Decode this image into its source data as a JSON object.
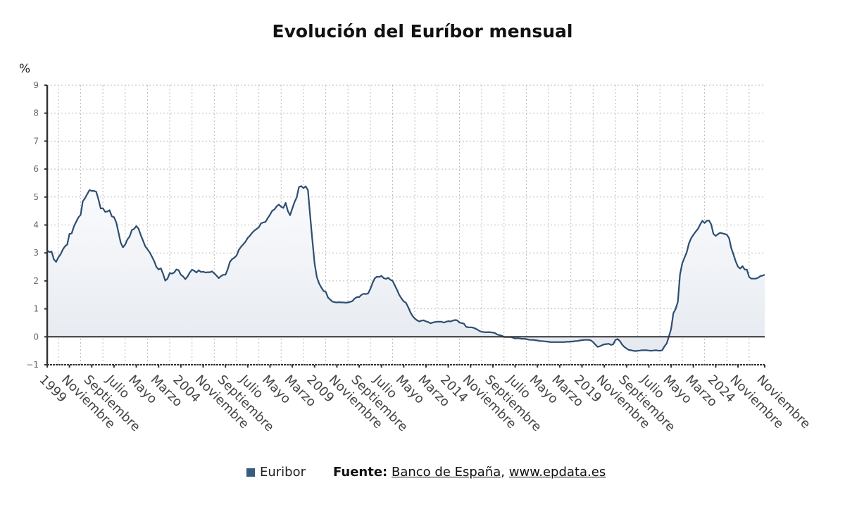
{
  "chart_data": {
    "type": "area",
    "title": "Evolución del Euríbor mensual",
    "ylabel": "%",
    "ylim": [
      -1,
      9
    ],
    "yticks": [
      "9",
      "8",
      "7",
      "6",
      "5",
      "4",
      "3",
      "2",
      "1",
      "0",
      "−1"
    ],
    "grid": true,
    "x_start": "1999-01",
    "x_end": "2025-11",
    "xtick_labels": [
      {
        "month": "1999-01",
        "label": "1999"
      },
      {
        "month": "1999-11",
        "label": "Noviembre"
      },
      {
        "month": "2000-09",
        "label": "Septiembre"
      },
      {
        "month": "2001-07",
        "label": "Julio"
      },
      {
        "month": "2002-05",
        "label": "Mayo"
      },
      {
        "month": "2003-03",
        "label": "Marzo"
      },
      {
        "month": "2004-01",
        "label": "2004"
      },
      {
        "month": "2004-11",
        "label": "Noviembre"
      },
      {
        "month": "2005-09",
        "label": "Septiembre"
      },
      {
        "month": "2006-07",
        "label": "Julio"
      },
      {
        "month": "2007-05",
        "label": "Mayo"
      },
      {
        "month": "2008-03",
        "label": "Marzo"
      },
      {
        "month": "2009-01",
        "label": "2009"
      },
      {
        "month": "2009-11",
        "label": "Noviembre"
      },
      {
        "month": "2010-09",
        "label": "Septiembre"
      },
      {
        "month": "2011-07",
        "label": "Julio"
      },
      {
        "month": "2012-05",
        "label": "Mayo"
      },
      {
        "month": "2013-03",
        "label": "Marzo"
      },
      {
        "month": "2014-01",
        "label": "2014"
      },
      {
        "month": "2014-11",
        "label": "Noviembre"
      },
      {
        "month": "2015-09",
        "label": "Septiembre"
      },
      {
        "month": "2016-07",
        "label": "Julio"
      },
      {
        "month": "2017-05",
        "label": "Mayo"
      },
      {
        "month": "2018-03",
        "label": "Marzo"
      },
      {
        "month": "2019-01",
        "label": "2019"
      },
      {
        "month": "2019-11",
        "label": "Noviembre"
      },
      {
        "month": "2020-09",
        "label": "Septiembre"
      },
      {
        "month": "2021-07",
        "label": "Julio"
      },
      {
        "month": "2022-05",
        "label": "Mayo"
      },
      {
        "month": "2023-03",
        "label": "Marzo"
      },
      {
        "month": "2024-01",
        "label": "2024"
      },
      {
        "month": "2024-11",
        "label": "Noviembre"
      },
      {
        "month": "2025-11",
        "label": "Noviembre"
      }
    ],
    "legend_placement": "bottom",
    "series": [
      {
        "name": "Euribor",
        "color": "#2d4e72",
        "values": [
          3.09,
          3.03,
          3.05,
          2.77,
          2.68,
          2.84,
          2.95,
          3.12,
          3.24,
          3.3,
          3.68,
          3.7,
          3.95,
          4.11,
          4.27,
          4.36,
          4.85,
          4.96,
          5.11,
          5.25,
          5.22,
          5.22,
          5.19,
          4.92,
          4.59,
          4.6,
          4.47,
          4.48,
          4.53,
          4.31,
          4.28,
          4.09,
          3.73,
          3.37,
          3.2,
          3.3,
          3.48,
          3.59,
          3.82,
          3.86,
          3.96,
          3.87,
          3.64,
          3.44,
          3.24,
          3.13,
          3.02,
          2.87,
          2.71,
          2.5,
          2.41,
          2.45,
          2.25,
          2.01,
          2.08,
          2.28,
          2.26,
          2.3,
          2.41,
          2.38,
          2.22,
          2.16,
          2.06,
          2.16,
          2.3,
          2.4,
          2.36,
          2.3,
          2.38,
          2.32,
          2.33,
          2.3,
          2.31,
          2.31,
          2.34,
          2.27,
          2.19,
          2.1,
          2.17,
          2.22,
          2.22,
          2.41,
          2.68,
          2.78,
          2.83,
          2.91,
          3.11,
          3.22,
          3.31,
          3.4,
          3.54,
          3.62,
          3.72,
          3.8,
          3.86,
          3.92,
          4.06,
          4.09,
          4.11,
          4.25,
          4.37,
          4.51,
          4.56,
          4.67,
          4.73,
          4.65,
          4.61,
          4.79,
          4.5,
          4.35,
          4.59,
          4.82,
          4.99,
          5.36,
          5.39,
          5.32,
          5.38,
          5.25,
          4.35,
          3.45,
          2.62,
          2.14,
          1.91,
          1.77,
          1.64,
          1.61,
          1.41,
          1.33,
          1.26,
          1.24,
          1.23,
          1.24,
          1.23,
          1.23,
          1.22,
          1.23,
          1.25,
          1.28,
          1.37,
          1.42,
          1.42,
          1.5,
          1.54,
          1.53,
          1.55,
          1.71,
          1.92,
          2.09,
          2.15,
          2.14,
          2.18,
          2.1,
          2.07,
          2.11,
          2.04,
          2.0,
          1.84,
          1.68,
          1.5,
          1.37,
          1.27,
          1.22,
          1.06,
          0.88,
          0.74,
          0.65,
          0.59,
          0.55,
          0.58,
          0.59,
          0.55,
          0.53,
          0.48,
          0.51,
          0.53,
          0.54,
          0.54,
          0.54,
          0.51,
          0.54,
          0.56,
          0.55,
          0.58,
          0.6,
          0.59,
          0.51,
          0.49,
          0.47,
          0.36,
          0.34,
          0.34,
          0.33,
          0.3,
          0.26,
          0.21,
          0.18,
          0.17,
          0.16,
          0.17,
          0.16,
          0.15,
          0.13,
          0.08,
          0.06,
          0.04,
          -0.01,
          -0.01,
          -0.01,
          -0.01,
          -0.03,
          -0.06,
          -0.05,
          -0.06,
          -0.07,
          -0.07,
          -0.08,
          -0.1,
          -0.11,
          -0.11,
          -0.12,
          -0.13,
          -0.15,
          -0.15,
          -0.16,
          -0.17,
          -0.18,
          -0.19,
          -0.19,
          -0.19,
          -0.19,
          -0.19,
          -0.19,
          -0.19,
          -0.18,
          -0.18,
          -0.17,
          -0.17,
          -0.15,
          -0.15,
          -0.13,
          -0.12,
          -0.11,
          -0.11,
          -0.11,
          -0.13,
          -0.19,
          -0.28,
          -0.36,
          -0.34,
          -0.3,
          -0.27,
          -0.26,
          -0.25,
          -0.29,
          -0.27,
          -0.11,
          -0.08,
          -0.15,
          -0.28,
          -0.36,
          -0.42,
          -0.47,
          -0.48,
          -0.5,
          -0.51,
          -0.5,
          -0.49,
          -0.48,
          -0.48,
          -0.48,
          -0.49,
          -0.5,
          -0.49,
          -0.48,
          -0.49,
          -0.5,
          -0.48,
          -0.34,
          -0.24,
          0.01,
          0.29,
          0.85,
          0.99,
          1.25,
          2.23,
          2.63,
          2.83,
          3.02,
          3.34,
          3.53,
          3.65,
          3.76,
          3.86,
          4.01,
          4.15,
          4.07,
          4.15,
          4.16,
          4.02,
          3.68,
          3.61,
          3.67,
          3.72,
          3.7,
          3.68,
          3.65,
          3.53,
          3.17,
          2.94,
          2.69,
          2.51,
          2.44,
          2.53,
          2.41,
          2.4,
          2.14,
          2.08,
          2.08,
          2.08,
          2.11,
          2.17,
          2.19,
          2.22
        ]
      }
    ]
  },
  "legend": {
    "label": "Euribor"
  },
  "source": {
    "prefix": "Fuente:",
    "link1": "Banco de España",
    "sep": ",",
    "link2": "www.epdata.es"
  }
}
